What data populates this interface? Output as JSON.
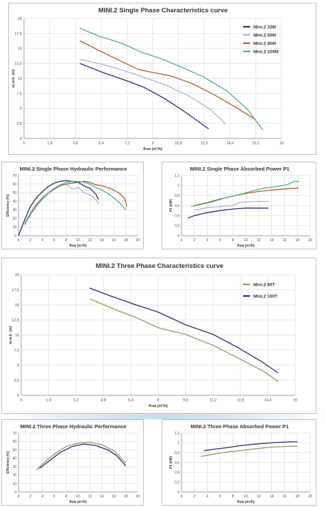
{
  "chart_data": [
    {
      "id": "c1",
      "type": "line",
      "title": "MINI.2 Single Phase Characteristics curve",
      "xlabel": "flow (m³/h)",
      "ylabel": "m.w.k. (m)",
      "xlim": [
        0,
        18
      ],
      "ylim": [
        0,
        20
      ],
      "xticks": [
        "0",
        "1,8",
        "3,6",
        "5,4",
        "7,2",
        "9",
        "10,8",
        "12,6",
        "14,4",
        "16,2",
        "18"
      ],
      "yticks": [
        "0",
        "2,5",
        "5",
        "7,5",
        "10",
        "12,5",
        "15",
        "17,5",
        "20"
      ],
      "grid": true,
      "legend": "top-right",
      "series": [
        {
          "name": "Mini.2 33M",
          "color": "#1f2a66",
          "x": [
            3.9,
            5.5,
            7.2,
            8.4,
            9.8,
            11.2,
            12.9
          ],
          "y": [
            12.5,
            11.0,
            9.6,
            8.5,
            6.7,
            4.5,
            1.6
          ]
        },
        {
          "name": "Mini.2 50M",
          "color": "#b2aed0",
          "x": [
            3.9,
            5.4,
            7.0,
            8.5,
            10.0,
            11.5,
            13.0,
            14.1
          ],
          "y": [
            13.2,
            12.4,
            11.3,
            10.1,
            8.8,
            7.1,
            4.9,
            2.4
          ]
        },
        {
          "name": "Mini.2 80M",
          "color": "#b25722",
          "x": [
            3.9,
            5.3,
            6.6,
            8.0,
            9.0,
            10.3,
            11.8,
            13.2,
            14.6,
            15.8,
            16.2
          ],
          "y": [
            16.3,
            14.6,
            13.1,
            11.5,
            11.0,
            10.4,
            9.1,
            7.4,
            5.5,
            3.7,
            3.1
          ]
        },
        {
          "name": "Mini.2 100M",
          "color": "#4eae8c",
          "x": [
            3.9,
            5.2,
            6.8,
            8.2,
            9.7,
            11.0,
            12.6,
            14.2,
            15.6,
            16.7
          ],
          "y": [
            18.4,
            17.1,
            15.9,
            14.4,
            13.2,
            11.9,
            10.2,
            7.9,
            4.9,
            1.4
          ]
        }
      ]
    },
    {
      "id": "c2",
      "type": "line",
      "title": "MINI.2 Single Phase Hydraulic Performance",
      "xlabel": "flow (m³/h)",
      "ylabel": "Efficiency (%)",
      "xlim": [
        0,
        20
      ],
      "ylim": [
        0,
        70
      ],
      "xticks": [
        "0",
        "2",
        "4",
        "6",
        "8",
        "10",
        "12",
        "14",
        "16",
        "18",
        "20"
      ],
      "yticks": [
        "0",
        "10",
        "20",
        "30",
        "40",
        "50",
        "60",
        "70"
      ],
      "grid": true,
      "series": [
        {
          "color": "#1f2a66",
          "x": [
            0,
            1,
            2,
            3,
            4,
            5,
            6,
            7,
            8,
            9,
            10,
            11,
            12,
            13,
            13.4
          ],
          "y": [
            0,
            18,
            34,
            44,
            51,
            57,
            61,
            63,
            64,
            63,
            62,
            58,
            55,
            48,
            42
          ]
        },
        {
          "color": "#b2aed0",
          "x": [
            1,
            2,
            3,
            4,
            5,
            6,
            7,
            8,
            9,
            10,
            11,
            12,
            13,
            13.5
          ],
          "y": [
            12,
            24,
            34,
            42,
            48,
            54,
            58,
            60,
            54,
            56,
            50,
            47,
            42,
            36
          ]
        },
        {
          "color": "#b25722",
          "x": [
            1,
            2,
            3,
            4,
            5,
            6,
            7,
            8,
            9,
            10,
            11,
            12,
            13,
            14,
            15,
            16,
            17,
            17.8,
            18.2
          ],
          "y": [
            14,
            26,
            36,
            44,
            50,
            54,
            58,
            60,
            61,
            62,
            63,
            62,
            59,
            58,
            56,
            53,
            49,
            43,
            34
          ]
        },
        {
          "color": "#4eae8c",
          "x": [
            1,
            2,
            3,
            4,
            5,
            6,
            7,
            8,
            9,
            10,
            11,
            12,
            13,
            14,
            15,
            16,
            17,
            18
          ],
          "y": [
            14,
            25,
            35,
            43,
            50,
            55,
            59,
            62,
            63,
            63,
            62,
            60,
            56,
            53,
            49,
            44,
            38,
            30
          ]
        }
      ]
    },
    {
      "id": "c3",
      "type": "line",
      "title": "MINI.2 Single Phase Absorbed Power P1",
      "xlabel": "flow (m³/h)",
      "ylabel": "P1 (kW)",
      "xlim": [
        0,
        20
      ],
      "ylim": [
        0,
        1.2
      ],
      "xticks": [
        "0",
        "2",
        "4",
        "6",
        "8",
        "10",
        "12",
        "14",
        "16",
        "18",
        "20"
      ],
      "yticks": [
        "0",
        "0,2",
        "0,4",
        "0,6",
        "0,8",
        "1",
        "1,2"
      ],
      "grid": true,
      "series": [
        {
          "color": "#1f2a66",
          "x": [
            1,
            2,
            4,
            6,
            8,
            10,
            12,
            13.5
          ],
          "y": [
            0.35,
            0.4,
            0.46,
            0.5,
            0.53,
            0.55,
            0.55,
            0.55
          ]
        },
        {
          "color": "#b2aed0",
          "x": [
            2,
            4,
            6,
            8,
            9,
            10,
            12,
            13.5
          ],
          "y": [
            0.5,
            0.56,
            0.58,
            0.6,
            0.66,
            0.67,
            0.68,
            0.68
          ]
        },
        {
          "color": "#b25722",
          "x": [
            2,
            4,
            6,
            8,
            10,
            12,
            14,
            16,
            18.2
          ],
          "y": [
            0.6,
            0.66,
            0.73,
            0.79,
            0.84,
            0.88,
            0.91,
            0.93,
            0.95
          ]
        },
        {
          "color": "#4eae8c",
          "x": [
            1.5,
            3,
            5,
            7,
            9,
            11,
            13,
            15,
            16.5,
            17.5,
            18.3
          ],
          "y": [
            0.58,
            0.62,
            0.68,
            0.76,
            0.82,
            0.89,
            0.95,
            0.98,
            1.02,
            1.08,
            1.08
          ]
        }
      ]
    },
    {
      "id": "c4",
      "type": "line",
      "title": "MINI.2 Three Phase Characteristics curve",
      "xlabel": "flow (m³/h)",
      "ylabel": "m.w.k. (m)",
      "xlim": [
        0,
        16
      ],
      "ylim": [
        0,
        20
      ],
      "xticks": [
        "0",
        "1,6",
        "3,2",
        "4,8",
        "6,4",
        "8",
        "9,6",
        "11,2",
        "12,8",
        "14,4",
        "16"
      ],
      "yticks": [
        "0",
        "2,5",
        "5",
        "7,5",
        "10",
        "12,5",
        "15",
        "17,5",
        "20"
      ],
      "grid": true,
      "legend": "top-right",
      "series": [
        {
          "name": "Mini.2 80T",
          "color": "#9c9466",
          "x": [
            4.0,
            5.5,
            6.8,
            8.0,
            9.6,
            11.2,
            12.8,
            14.2,
            15.0
          ],
          "y": [
            16.0,
            14.2,
            12.8,
            11.2,
            10.1,
            8.3,
            6.0,
            3.9,
            2.3
          ]
        },
        {
          "name": "Mini.2 100T",
          "color": "#1f2a66",
          "x": [
            4.0,
            5.0,
            6.6,
            8.0,
            9.6,
            11.2,
            12.6,
            14.1,
            15.0
          ],
          "y": [
            17.8,
            16.7,
            15.1,
            13.8,
            11.7,
            10.1,
            8.0,
            5.5,
            3.7
          ]
        }
      ]
    },
    {
      "id": "c5",
      "type": "line",
      "title": "MINI.2 Three Phase Hydraulic Performance",
      "xlabel": "flow (m³/h)",
      "ylabel": "Efficiency (%)",
      "xlim": [
        0,
        20
      ],
      "ylim": [
        0,
        70
      ],
      "xticks": [
        "0",
        "2",
        "4",
        "6",
        "8",
        "10",
        "12",
        "14",
        "16",
        "18",
        "20"
      ],
      "yticks": [
        "0",
        "10",
        "20",
        "30",
        "40",
        "50",
        "60",
        "70"
      ],
      "grid": true,
      "series": [
        {
          "color": "#9c9466",
          "x": [
            3,
            4,
            6,
            8,
            10,
            12,
            14,
            16,
            17,
            18
          ],
          "y": [
            26,
            33,
            45,
            54,
            58,
            59,
            56,
            49,
            42,
            34
          ]
        },
        {
          "color": "#1f2a66",
          "x": [
            3.5,
            5,
            7,
            9,
            11,
            13,
            15,
            16.5,
            18
          ],
          "y": [
            28,
            36,
            47,
            54,
            57,
            55,
            50,
            43,
            31
          ]
        }
      ]
    },
    {
      "id": "c6",
      "type": "line",
      "title": "MINI.2 Three Phase Absorbed Power P1",
      "xlabel": "flow (m³/h)",
      "ylabel": "P1 (kW)",
      "xlim": [
        0,
        20
      ],
      "ylim": [
        0,
        1.2
      ],
      "xticks": [
        "0",
        "2",
        "4",
        "6",
        "8",
        "10",
        "12",
        "14",
        "16",
        "18",
        "20"
      ],
      "yticks": [
        "0",
        "0,2",
        "0,4",
        "0,6",
        "0,8",
        "1",
        "1,2"
      ],
      "grid": true,
      "series": [
        {
          "color": "#1f2a66",
          "x": [
            3.5,
            5,
            7,
            9,
            11,
            13,
            15,
            17,
            18
          ],
          "y": [
            0.84,
            0.87,
            0.9,
            0.94,
            0.97,
            0.99,
            1.01,
            1.02,
            1.02
          ]
        },
        {
          "color": "#9c9466",
          "x": [
            3,
            5,
            7,
            9,
            11,
            13,
            15,
            17,
            18
          ],
          "y": [
            0.72,
            0.77,
            0.81,
            0.84,
            0.87,
            0.9,
            0.92,
            0.93,
            0.93
          ]
        }
      ]
    }
  ]
}
